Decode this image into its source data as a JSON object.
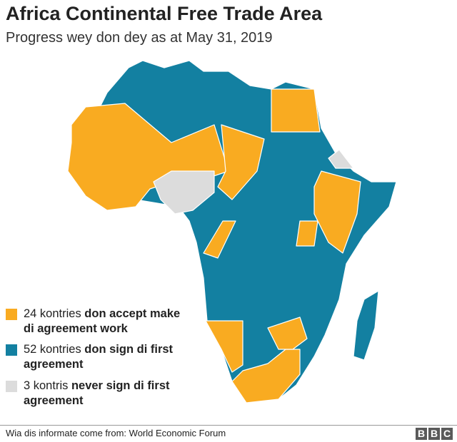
{
  "title": "Africa Continental Free Trade Area",
  "subtitle": "Progress wey don dey as at May 31, 2019",
  "colors": {
    "accepted": "#f9ab21",
    "signed": "#1380a1",
    "not_signed": "#dcdcdc"
  },
  "legend": [
    {
      "prefix": "24 kontries ",
      "bold": "don accept make di agreement work",
      "color": "#f9ab21"
    },
    {
      "prefix": "52 kontries ",
      "bold": "don sign di first agreement",
      "color": "#1380a1"
    },
    {
      "prefix": "3 kontris ",
      "bold": "never sign di first agreement",
      "color": "#dcdcdc"
    }
  ],
  "source": "Wia dis informate come from: World Economic Forum",
  "logo": "BBC"
}
